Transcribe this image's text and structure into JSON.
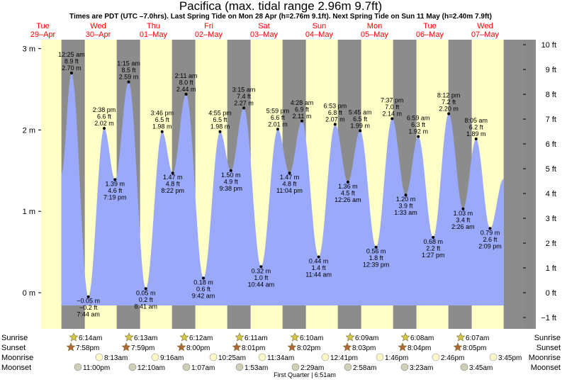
{
  "chart_data": {
    "type": "area",
    "title": "Pacifica (max. tidal range 2.96m 9.7ft)",
    "subtitle": "Times are PDT (UTC –7.0hrs). Last Spring Tide on Mon 28 Apr (h=2.76m 9.1ft). Next Spring Tide on Sun 11 May (h=2.40m 7.9ft)",
    "days": [
      {
        "dow": "Tue",
        "date": "29–Apr"
      },
      {
        "dow": "Wed",
        "date": "30–Apr"
      },
      {
        "dow": "Thu",
        "date": "01–May"
      },
      {
        "dow": "Fri",
        "date": "02–May"
      },
      {
        "dow": "Sat",
        "date": "03–May"
      },
      {
        "dow": "Sun",
        "date": "04–May"
      },
      {
        "dow": "Mon",
        "date": "05–May"
      },
      {
        "dow": "Tue",
        "date": "06–May"
      },
      {
        "dow": "Wed",
        "date": "07–May"
      }
    ],
    "left_axis": {
      "unit": "m",
      "ticks": [
        {
          "v": 0,
          "label": "0 m"
        },
        {
          "v": 1,
          "label": "1 m"
        },
        {
          "v": 2,
          "label": "2 m"
        },
        {
          "v": 3,
          "label": "3 m"
        }
      ]
    },
    "right_axis": {
      "unit": "ft",
      "ticks": [
        "−1 ft",
        "0 ft",
        "1 ft",
        "2 ft",
        "3 ft",
        "4 ft",
        "5 ft",
        "6 ft",
        "7 ft",
        "8 ft",
        "9 ft",
        "10 ft"
      ]
    },
    "ylim_m": [
      -0.4,
      3.1
    ],
    "tides": [
      {
        "day": 0,
        "h": 20.0,
        "m": "",
        "ft": "",
        "time": "",
        "type": "start_low"
      },
      {
        "day": 0,
        "h": 24.42,
        "m": "2.70 m",
        "ft": "8.9 ft",
        "time": "12:25 am",
        "type": "high",
        "value": 2.7
      },
      {
        "day": 1,
        "h": 7.73,
        "m": "−0.05 m",
        "ft": "−0.2 ft",
        "time": "7:44 am",
        "type": "low",
        "value": -0.05
      },
      {
        "day": 1,
        "h": 14.63,
        "m": "2.02 m",
        "ft": "6.6 ft",
        "time": "2:38 pm",
        "type": "high",
        "value": 2.02
      },
      {
        "day": 1,
        "h": 19.32,
        "m": "1.39 m",
        "ft": "4.6 ft",
        "time": "7:19 pm",
        "type": "low",
        "value": 1.39
      },
      {
        "day": 2,
        "h": 1.25,
        "m": "2.59 m",
        "ft": "8.5 ft",
        "time": "1:15 am",
        "type": "high",
        "value": 2.59
      },
      {
        "day": 2,
        "h": 8.68,
        "m": "0.05 m",
        "ft": "0.2 ft",
        "time": "8:41 am",
        "type": "low",
        "value": 0.05
      },
      {
        "day": 2,
        "h": 15.77,
        "m": "1.98 m",
        "ft": "6.5 ft",
        "time": "3:46 pm",
        "type": "high",
        "value": 1.98
      },
      {
        "day": 2,
        "h": 20.37,
        "m": "1.47 m",
        "ft": "4.8 ft",
        "time": "8:22 pm",
        "type": "low",
        "value": 1.47
      },
      {
        "day": 3,
        "h": 2.18,
        "m": "2.44 m",
        "ft": "8.0 ft",
        "time": "2:11 am",
        "type": "high",
        "value": 2.44
      },
      {
        "day": 3,
        "h": 9.7,
        "m": "0.18 m",
        "ft": "0.6 ft",
        "time": "9:42 am",
        "type": "low",
        "value": 0.18
      },
      {
        "day": 3,
        "h": 16.92,
        "m": "1.98 m",
        "ft": "6.5 ft",
        "time": "4:55 pm",
        "type": "high",
        "value": 1.98
      },
      {
        "day": 3,
        "h": 21.63,
        "m": "1.50 m",
        "ft": "4.9 ft",
        "time": "9:38 pm",
        "type": "low",
        "value": 1.5
      },
      {
        "day": 4,
        "h": 3.25,
        "m": "2.27 m",
        "ft": "7.4 ft",
        "time": "3:15 am",
        "type": "high",
        "value": 2.27
      },
      {
        "day": 4,
        "h": 10.73,
        "m": "0.32 m",
        "ft": "1.0 ft",
        "time": "10:44 am",
        "type": "low",
        "value": 0.32
      },
      {
        "day": 4,
        "h": 17.98,
        "m": "2.01 m",
        "ft": "6.6 ft",
        "time": "5:59 pm",
        "type": "high",
        "value": 2.01
      },
      {
        "day": 4,
        "h": 23.07,
        "m": "1.47 m",
        "ft": "4.8 ft",
        "time": "11:04 pm",
        "type": "low",
        "value": 1.47
      },
      {
        "day": 5,
        "h": 4.47,
        "m": "2.11 m",
        "ft": "6.9 ft",
        "time": "4:28 am",
        "type": "high",
        "value": 2.11
      },
      {
        "day": 5,
        "h": 11.73,
        "m": "0.44 m",
        "ft": "1.4 ft",
        "time": "11:44 am",
        "type": "low",
        "value": 0.44
      },
      {
        "day": 5,
        "h": 18.88,
        "m": "2.07 m",
        "ft": "6.8 ft",
        "time": "6:53 pm",
        "type": "high",
        "value": 2.07
      },
      {
        "day": 6,
        "h": 0.43,
        "m": "1.36 m",
        "ft": "4.5 ft",
        "time": "12:26 am",
        "type": "low",
        "value": 1.36
      },
      {
        "day": 6,
        "h": 5.75,
        "m": "1.99 m",
        "ft": "6.5 ft",
        "time": "5:45 am",
        "type": "high",
        "value": 1.99
      },
      {
        "day": 6,
        "h": 12.65,
        "m": "0.56 m",
        "ft": "1.8 ft",
        "time": "12:39 pm",
        "type": "low",
        "value": 0.56
      },
      {
        "day": 6,
        "h": 19.62,
        "m": "2.14 m",
        "ft": "7.0 ft",
        "time": "7:37 pm",
        "type": "high",
        "value": 2.14
      },
      {
        "day": 7,
        "h": 1.55,
        "m": "1.20 m",
        "ft": "3.9 ft",
        "time": "1:33 am",
        "type": "low",
        "value": 1.2
      },
      {
        "day": 7,
        "h": 6.98,
        "m": "1.92 m",
        "ft": "6.3 ft",
        "time": "6:59 am",
        "type": "high",
        "value": 1.92
      },
      {
        "day": 7,
        "h": 13.45,
        "m": "0.68 m",
        "ft": "2.2 ft",
        "time": "1:27 pm",
        "type": "low",
        "value": 0.68
      },
      {
        "day": 7,
        "h": 20.2,
        "m": "2.20 m",
        "ft": "7.2 ft",
        "time": "8:12 pm",
        "type": "high",
        "value": 2.2
      },
      {
        "day": 8,
        "h": 2.43,
        "m": "1.03 m",
        "ft": "3.4 ft",
        "time": "2:26 am",
        "type": "low",
        "value": 1.03
      },
      {
        "day": 8,
        "h": 8.08,
        "m": "1.89 m",
        "ft": "6.2 ft",
        "time": "8:05 am",
        "type": "high",
        "value": 1.89
      },
      {
        "day": 8,
        "h": 14.15,
        "m": "0.79 m",
        "ft": "2.6 ft",
        "time": "2:09 pm",
        "type": "low",
        "value": 0.79
      },
      {
        "day": 8,
        "h": 20.0,
        "m": "",
        "ft": "",
        "time": "",
        "type": "end_high"
      }
    ],
    "sun_moon": {
      "row_labels": [
        "Sunrise",
        "Sunset",
        "Moonrise",
        "Moonset"
      ],
      "sunrise": [
        "6:14am",
        "6:13am",
        "6:12am",
        "6:11am",
        "6:10am",
        "6:09am",
        "6:08am",
        "6:07am"
      ],
      "sunset": [
        "7:58pm",
        "7:59pm",
        "8:00pm",
        "8:01pm",
        "8:02pm",
        "8:03pm",
        "8:04pm",
        "8:05pm"
      ],
      "moonrise": [
        "8:13am",
        "9:16am",
        "10:25am",
        "11:34am",
        "12:41pm",
        "1:46pm",
        "2:46pm",
        "3:45pm"
      ],
      "moonset": [
        "11:00pm",
        "12:10am",
        "1:07am",
        "1:53am",
        "2:29am",
        "2:58am",
        "3:23am",
        "3:45am"
      ]
    },
    "moon_phase": "First Quarter | 6:51am",
    "colors": {
      "day": "#ffffc8",
      "night": "#8c8c8c",
      "tide": "#9aa9fa",
      "date_red": "#ff0000",
      "right_panel": "#8a8a8a"
    }
  }
}
